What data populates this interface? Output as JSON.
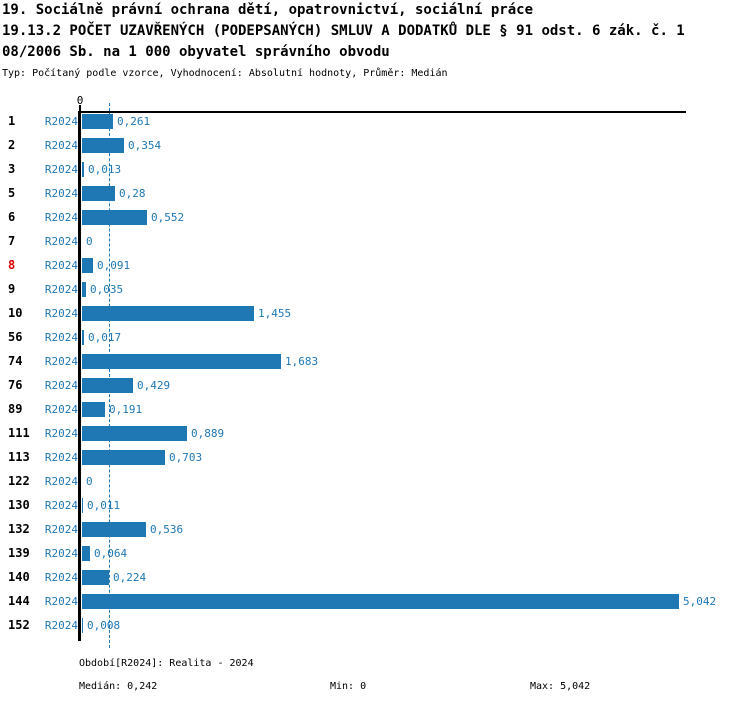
{
  "title": {
    "line1": "19. Sociálně právní ochrana dětí, opatrovnictví, sociální práce",
    "line2": "19.13.2 POČET UZAVŘENÝCH (PODEPSANÝCH) SMLUV A DODATKŮ DLE § 91 odst. 6 zák. č. 1",
    "line3": "08/2006 Sb. na 1 000 obyvatel správního obvodu",
    "subtitle": "Typ: Počítaný podle vzorce, Vyhodnocení: Absolutní hodnoty, Průměr: Medián"
  },
  "chart_data": {
    "type": "bar",
    "orientation": "horizontal",
    "axis_zero_label": "0",
    "period_label": "R2024",
    "categories": [
      "1",
      "2",
      "3",
      "5",
      "6",
      "7",
      "8",
      "9",
      "10",
      "56",
      "74",
      "76",
      "89",
      "111",
      "113",
      "122",
      "130",
      "132",
      "139",
      "140",
      "144",
      "152"
    ],
    "values": [
      0.261,
      0.354,
      0.013,
      0.28,
      0.552,
      0,
      0.091,
      0.035,
      1.455,
      0.017,
      1.683,
      0.429,
      0.191,
      0.889,
      0.703,
      0,
      0.011,
      0.536,
      0.064,
      0.224,
      5.042,
      0.008
    ],
    "value_labels": [
      "0,261",
      "0,354",
      "0,013",
      "0,28",
      "0,552",
      "0",
      "0,091",
      "0,035",
      "1,455",
      "0,017",
      "1,683",
      "0,429",
      "0,191",
      "0,889",
      "0,703",
      "0",
      "0,011",
      "0,536",
      "0,064",
      "0,224",
      "5,042",
      "0,008"
    ],
    "highlighted_category": "8",
    "median": 0.242,
    "xlim": [
      0,
      5.042
    ],
    "median_line_dashed": true,
    "legend_position": "none",
    "grid": false,
    "colors": {
      "bar": "#1f77b4",
      "blue_text": "#1f77b4",
      "highlight_red": "#dd0000",
      "axis_black": "#000000"
    }
  },
  "footer": {
    "period_info": "Období[R2024]: Realita - 2024",
    "median": "Medián: 0,242",
    "min": "Min: 0",
    "max": "Max: 5,042"
  }
}
